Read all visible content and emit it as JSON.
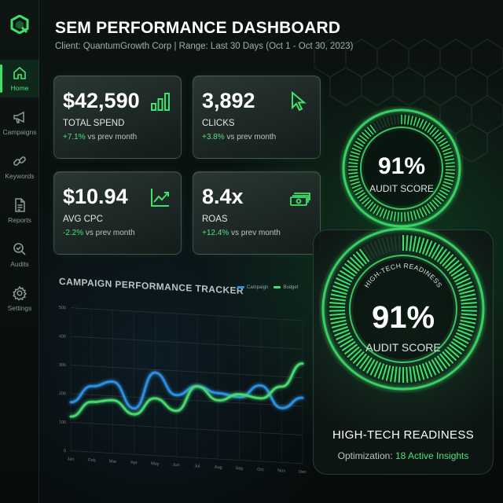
{
  "app": {
    "title": "SEM PERFORMANCE DASHBOARD",
    "subtitle": "Client: QuantumGrowth Corp |  Range: Last 30 Days (Oct 1 - Oct 30, 2023)"
  },
  "colors": {
    "accent": "#3ee26a",
    "series_blue": "#2f8fe0",
    "series_green": "#47d86e"
  },
  "sidebar": {
    "items": [
      {
        "label": "Home",
        "icon": "home-icon",
        "active": true
      },
      {
        "label": "Campaigns",
        "icon": "megaphone-icon",
        "active": false
      },
      {
        "label": "Keywords",
        "icon": "link-icon",
        "active": false
      },
      {
        "label": "Reports",
        "icon": "document-icon",
        "active": false
      },
      {
        "label": "Audits",
        "icon": "magnifier-check-icon",
        "active": false
      },
      {
        "label": "Settings",
        "icon": "gear-icon",
        "active": false
      }
    ]
  },
  "kpis": [
    {
      "value": "$42,590",
      "label": "TOTAL SPEND",
      "delta": "+7.1%",
      "suffix": " vs prev month",
      "icon": "bar-chart-icon"
    },
    {
      "value": "3,892",
      "label": "CLICKS",
      "delta": "+3.8%",
      "suffix": " vs prev month",
      "icon": "cursor-icon"
    },
    {
      "value": "$10.94",
      "label": "AVG CPC",
      "delta": "-2.2%",
      "suffix": " vs prev month",
      "icon": "trend-line-icon"
    },
    {
      "value": "8.4x",
      "label": "ROAS",
      "delta": "+12.4%",
      "suffix": " vs prev month",
      "icon": "money-stack-icon"
    }
  ],
  "chart": {
    "title": "CAMPAIGN PERFORMANCE TRACKER",
    "legend": [
      "Campaign",
      "Budget"
    ]
  },
  "chart_data": {
    "type": "line",
    "categories": [
      "Jan",
      "Feb",
      "Mar",
      "Apr",
      "May",
      "Jun",
      "Jul",
      "Aug",
      "Sep",
      "Oct",
      "Nov",
      "Dec"
    ],
    "ylim": [
      0,
      500
    ],
    "yticks": [
      "0",
      "100",
      "200",
      "300",
      "400",
      "500"
    ],
    "series": [
      {
        "name": "Campaign",
        "values": [
          170,
          230,
          250,
          160,
          290,
          215,
          250,
          230,
          220,
          265,
          190,
          230
        ]
      },
      {
        "name": "Budget",
        "values": [
          120,
          175,
          185,
          140,
          200,
          160,
          250,
          205,
          230,
          220,
          265,
          350
        ]
      }
    ]
  },
  "gauges": {
    "top": {
      "value": "91%",
      "label": "AUDIT SCORE",
      "percent": 91
    },
    "main": {
      "arc_label": "HIGH-TECH READINESS",
      "value": "91%",
      "label": "AUDIT SCORE",
      "percent": 91
    },
    "footer_title": "HIGH-TECH READINESS",
    "footer_sub_prefix": "Optimization: ",
    "footer_sub_highlight": "18 Active Insights"
  }
}
